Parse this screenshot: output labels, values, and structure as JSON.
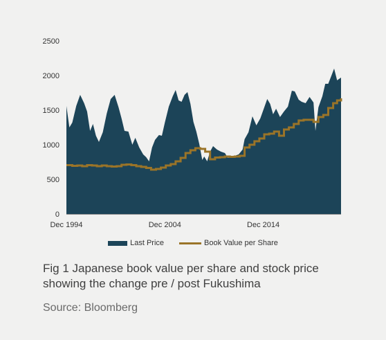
{
  "chart_data": {
    "type": "area",
    "title": "",
    "xlabel": "",
    "ylabel": "",
    "ylim": [
      0,
      2500
    ],
    "yticks": [
      "0",
      "500",
      "1000",
      "1500",
      "2000",
      "2500"
    ],
    "xtick_labels": [
      {
        "year": 1994.9,
        "label": "Dec 1994"
      },
      {
        "year": 2004.9,
        "label": "Dec 2004"
      },
      {
        "year": 2014.9,
        "label": "Dec 2014"
      }
    ],
    "xlim": [
      1994.9,
      2022.8
    ],
    "grid": false,
    "legend_position": "bottom",
    "series": [
      {
        "name": "Last Price",
        "type": "area",
        "color": "#1c4458",
        "x": [
          1994.9,
          1995.2,
          1995.5,
          1995.9,
          1996.3,
          1996.7,
          1997.0,
          1997.3,
          1997.6,
          1997.9,
          1998.2,
          1998.6,
          1999.0,
          1999.4,
          1999.8,
          2000.2,
          2000.5,
          2000.8,
          2001.2,
          2001.6,
          2001.9,
          2002.3,
          2002.7,
          2003.0,
          2003.3,
          2003.6,
          2003.9,
          2004.3,
          2004.6,
          2004.9,
          2005.3,
          2005.7,
          2006.0,
          2006.3,
          2006.6,
          2006.9,
          2007.2,
          2007.5,
          2007.8,
          2008.1,
          2008.4,
          2008.7,
          2008.9,
          2009.2,
          2009.5,
          2009.8,
          2010.2,
          2010.6,
          2011.0,
          2011.3,
          2011.7,
          2012.0,
          2012.4,
          2012.8,
          2013.0,
          2013.4,
          2013.8,
          2014.2,
          2014.6,
          2014.9,
          2015.3,
          2015.6,
          2015.9,
          2016.2,
          2016.6,
          2017.0,
          2017.4,
          2017.8,
          2018.1,
          2018.5,
          2018.8,
          2019.2,
          2019.6,
          2020.0,
          2020.2,
          2020.5,
          2020.9,
          2021.2,
          2021.5,
          2021.8,
          2022.1,
          2022.4,
          2022.8
        ],
        "values": [
          1560,
          1250,
          1320,
          1560,
          1720,
          1600,
          1480,
          1200,
          1300,
          1130,
          1040,
          1180,
          1450,
          1660,
          1720,
          1540,
          1380,
          1200,
          1190,
          1000,
          1100,
          960,
          860,
          820,
          760,
          960,
          1070,
          1140,
          1130,
          1320,
          1550,
          1700,
          1790,
          1640,
          1620,
          1720,
          1760,
          1590,
          1330,
          1190,
          1010,
          780,
          830,
          760,
          900,
          980,
          930,
          900,
          880,
          810,
          830,
          840,
          860,
          930,
          1080,
          1180,
          1410,
          1280,
          1380,
          1500,
          1660,
          1590,
          1440,
          1520,
          1400,
          1480,
          1550,
          1780,
          1770,
          1650,
          1620,
          1600,
          1690,
          1610,
          1200,
          1540,
          1700,
          1880,
          1880,
          1990,
          2100,
          1930,
          1970
        ]
      },
      {
        "name": "Book Value per Share",
        "type": "step",
        "color": "#9a7428",
        "x": [
          1994.9,
          1995.5,
          1996.0,
          1996.5,
          1997.0,
          1997.5,
          1998.0,
          1998.5,
          1999.0,
          1999.5,
          2000.0,
          2000.5,
          2001.0,
          2001.5,
          2002.0,
          2002.5,
          2003.0,
          2003.5,
          2004.0,
          2004.5,
          2005.0,
          2005.5,
          2006.0,
          2006.5,
          2007.0,
          2007.5,
          2008.0,
          2008.5,
          2009.0,
          2009.5,
          2010.0,
          2010.5,
          2011.0,
          2011.5,
          2012.0,
          2012.5,
          2013.0,
          2013.5,
          2014.0,
          2014.5,
          2015.0,
          2015.5,
          2016.0,
          2016.5,
          2017.0,
          2017.5,
          2018.0,
          2018.5,
          2019.0,
          2019.5,
          2020.0,
          2020.5,
          2021.0,
          2021.5,
          2022.0,
          2022.4,
          2022.8
        ],
        "values": [
          705,
          695,
          700,
          690,
          705,
          700,
          690,
          700,
          690,
          685,
          690,
          710,
          715,
          705,
          690,
          680,
          665,
          640,
          650,
          670,
          700,
          720,
          760,
          810,
          880,
          920,
          950,
          940,
          900,
          790,
          815,
          820,
          830,
          825,
          830,
          840,
          960,
          1000,
          1050,
          1090,
          1150,
          1160,
          1190,
          1130,
          1220,
          1250,
          1300,
          1350,
          1360,
          1360,
          1330,
          1400,
          1430,
          1530,
          1600,
          1640,
          1670
        ]
      }
    ]
  },
  "caption": "Fig 1 Japanese book value per share and stock price showing the change pre / post Fukushima",
  "source": "Source: Bloomberg"
}
